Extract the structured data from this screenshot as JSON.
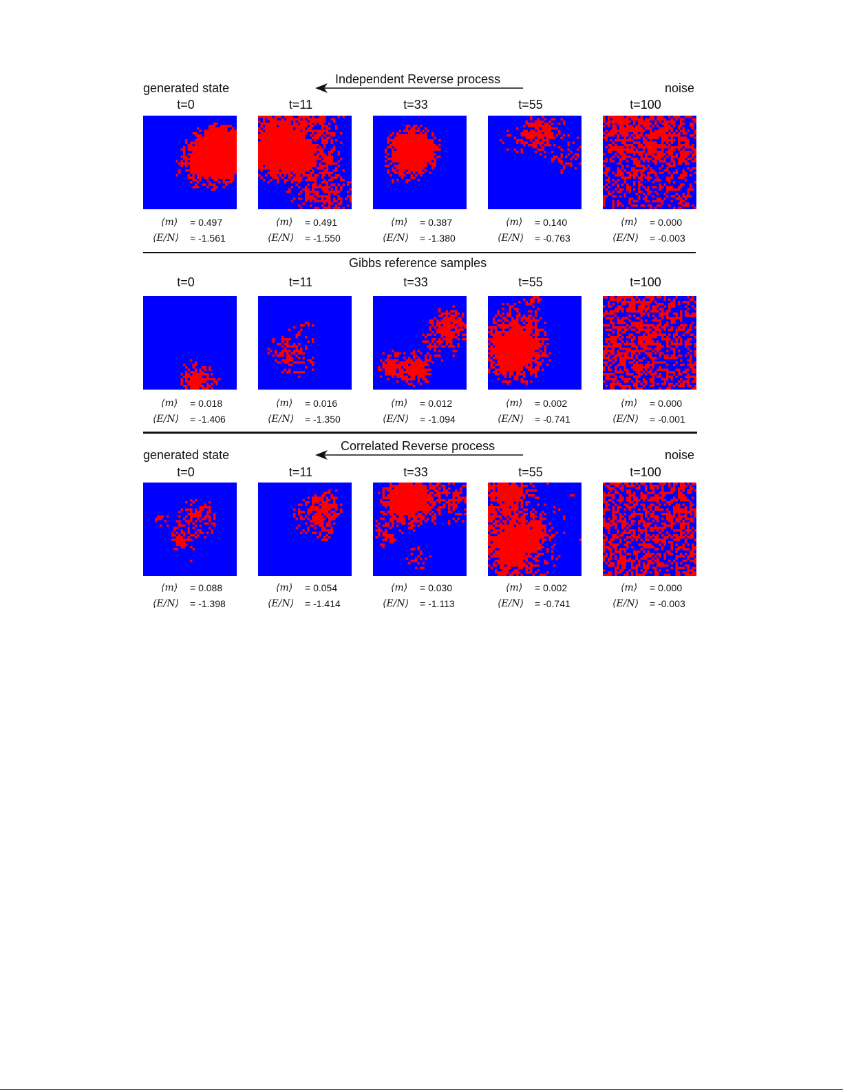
{
  "sections": [
    {
      "header": "Independent Reverse process",
      "left_label": "generated state",
      "right_label": "noise",
      "m_symbol": "⟨m⟩",
      "e_symbol": "⟨E/N⟩",
      "panels": [
        {
          "t": "t=0",
          "m": "= 0.497",
          "e": "= -1.561"
        },
        {
          "t": "t=11",
          "m": "= 0.491",
          "e": "= -1.550"
        },
        {
          "t": "t=33",
          "m": "= 0.387",
          "e": "= -1.380"
        },
        {
          "t": "t=55",
          "m": "= 0.140",
          "e": "= -0.763"
        },
        {
          "t": "t=100",
          "m": "= 0.000",
          "e": "= -0.003"
        }
      ]
    },
    {
      "header": "Gibbs reference samples",
      "m_symbol": "⟨m⟩",
      "e_symbol": "⟨E/N⟩",
      "panels": [
        {
          "t": "t=0",
          "m": "= 0.018",
          "e": "= -1.406"
        },
        {
          "t": "t=11",
          "m": "= 0.016",
          "e": "= -1.350"
        },
        {
          "t": "t=33",
          "m": "= 0.012",
          "e": "= -1.094"
        },
        {
          "t": "t=55",
          "m": "= 0.002",
          "e": "= -0.741"
        },
        {
          "t": "t=100",
          "m": "= 0.000",
          "e": "= -0.001"
        }
      ]
    },
    {
      "header": "Correlated Reverse process",
      "left_label": "generated state",
      "right_label": "noise",
      "m_symbol": "⟨m⟩",
      "e_symbol": "⟨E/N⟩",
      "panels": [
        {
          "t": "t=0",
          "m": "= 0.088",
          "e": "= -1.398"
        },
        {
          "t": "t=11",
          "m": "= 0.054",
          "e": "= -1.414"
        },
        {
          "t": "t=33",
          "m": "= 0.030",
          "e": "= -1.113"
        },
        {
          "t": "t=55",
          "m": "= 0.002",
          "e": "= -0.741"
        },
        {
          "t": "t=100",
          "m": "= 0.000",
          "e": "= -0.003"
        }
      ]
    }
  ],
  "colors": {
    "spin_up": "#ff0000",
    "spin_down": "#0000ff"
  },
  "lattice_density_red": [
    [
      0.3,
      0.55,
      0.22,
      0.12,
      0.5
    ],
    [
      0.06,
      0.07,
      0.22,
      0.34,
      0.5
    ],
    [
      0.09,
      0.11,
      0.3,
      0.45,
      0.5
    ]
  ]
}
